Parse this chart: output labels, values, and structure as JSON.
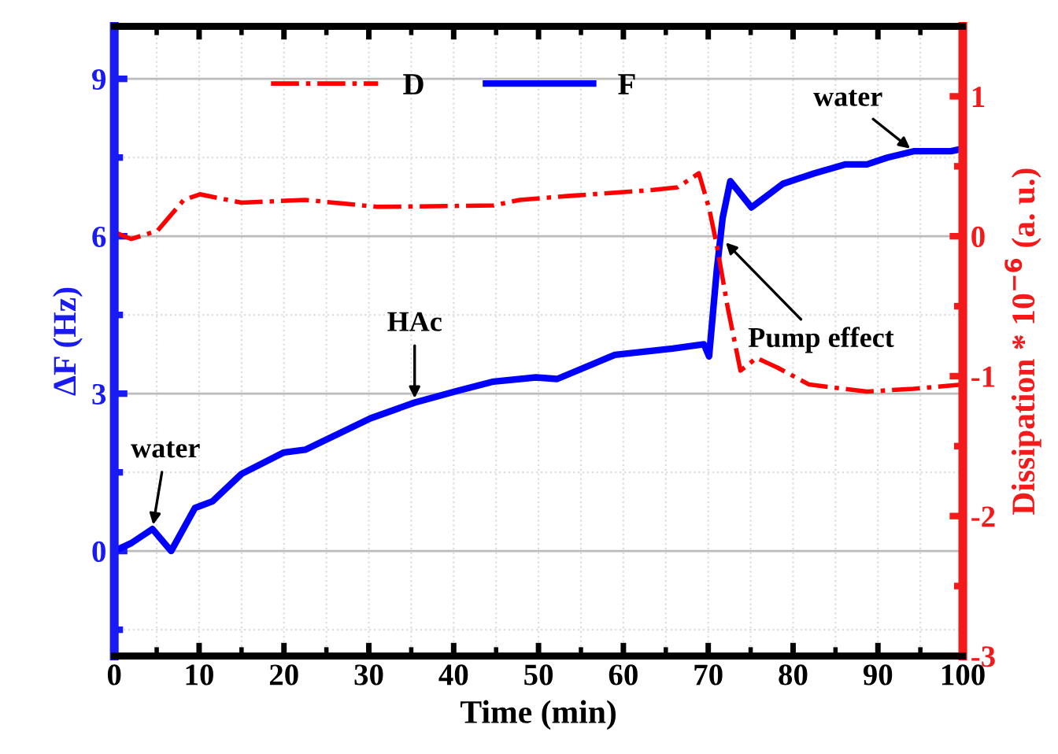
{
  "chart_data": {
    "type": "line",
    "xlabel": "Time (min)",
    "ylabel": "ΔF (Hz)",
    "y2label": "Dissipation * 10$^{−6}$ (a. u.)",
    "xlim": [
      0,
      100
    ],
    "xticks": [
      0,
      10,
      20,
      30,
      40,
      50,
      60,
      70,
      80,
      90,
      100
    ],
    "ylim": [
      -2,
      10
    ],
    "yticks": [
      0,
      3,
      6,
      9
    ],
    "y2lim": [
      -3,
      1.5
    ],
    "y2ticks": [
      -3,
      -2,
      -1,
      0,
      1
    ],
    "grid": true,
    "legend": "top",
    "series": [
      {
        "name": "D",
        "color": "#ff0000",
        "axis": "y2",
        "line_style": "dashdot",
        "x": [
          0,
          2,
          5.1,
          8.2,
          10.1,
          15,
          22.5,
          31,
          44.7,
          47.8,
          54,
          63.3,
          66.4,
          68.9,
          70.1,
          71,
          72.3,
          73.8,
          75.7,
          78.2,
          81.9,
          88.7,
          94.2,
          100
        ],
        "values": [
          0.03,
          -0.02,
          0.04,
          0.26,
          0.3,
          0.24,
          0.26,
          0.21,
          0.22,
          0.26,
          0.29,
          0.33,
          0.35,
          0.45,
          0.2,
          -0.06,
          -0.51,
          -0.96,
          -0.87,
          -0.94,
          -1.06,
          -1.11,
          -1.09,
          -1.06
        ]
      },
      {
        "name": "F",
        "color": "#0000ff",
        "axis": "y",
        "line_style": "solid",
        "x": [
          0,
          2,
          4.5,
          6.7,
          9.5,
          11.6,
          15,
          20,
          22.5,
          30.2,
          35.4,
          40.4,
          44.7,
          49.7,
          52.2,
          59,
          65.8,
          69.5,
          70.1,
          71,
          71.7,
          72.6,
          75.1,
          78.8,
          82.5,
          86.2,
          88.7,
          91.1,
          94.2,
          98.6,
          100
        ],
        "values": [
          0,
          0.15,
          0.42,
          0,
          0.82,
          0.95,
          1.47,
          1.88,
          1.93,
          2.53,
          2.83,
          3.05,
          3.23,
          3.31,
          3.28,
          3.74,
          3.86,
          3.94,
          3.71,
          5.34,
          6.35,
          7.05,
          6.55,
          7.0,
          7.2,
          7.37,
          7.37,
          7.5,
          7.62,
          7.62,
          7.67
        ]
      }
    ],
    "annotations": [
      {
        "text": "water",
        "x": 4.5,
        "y": 0.42
      },
      {
        "text": "HAc",
        "x": 35.4,
        "y": 2.83
      },
      {
        "text": "Pump effect",
        "x": 71.7,
        "y": 5.94
      },
      {
        "text": "water",
        "x": 94.2,
        "y": 7.62
      }
    ]
  }
}
